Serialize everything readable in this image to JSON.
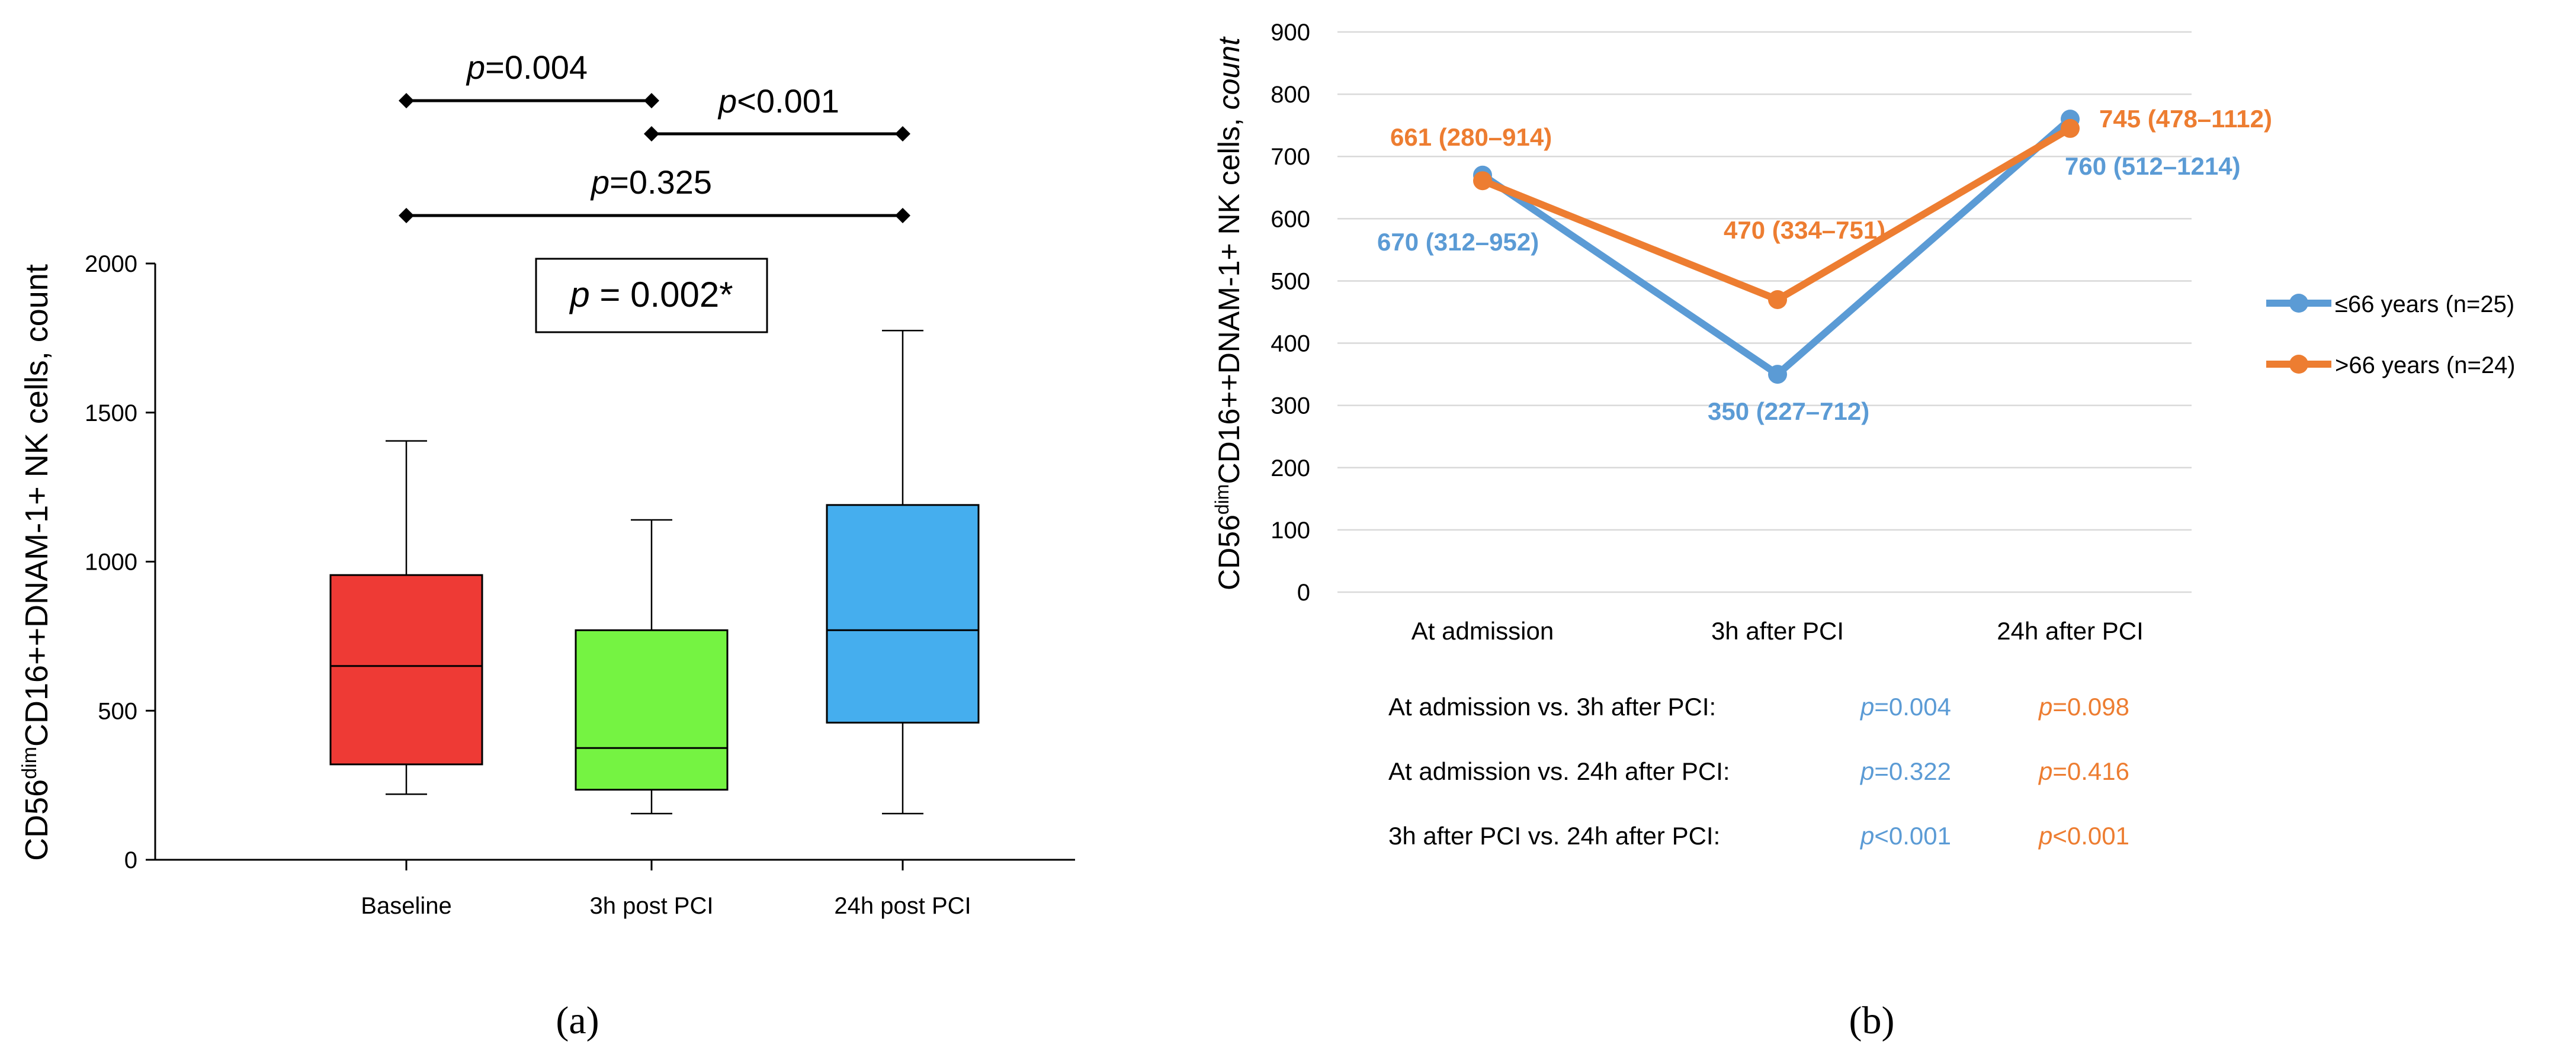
{
  "chart_data": [
    {
      "type": "box",
      "panel_label": "(a)",
      "ylabel_parts": [
        "CD56",
        "dim",
        "CD16++DNAM-1+ NK cells, count"
      ],
      "categories": [
        "Baseline",
        "3h post PCI",
        "24h post PCI"
      ],
      "colors": [
        "#EE3A35",
        "#75F342",
        "#45AEEE"
      ],
      "boxes": [
        {
          "min": 220,
          "q1": 320,
          "median": 650,
          "q3": 955,
          "max": 1405
        },
        {
          "min": 155,
          "q1": 235,
          "median": 375,
          "q3": 770,
          "max": 1140
        },
        {
          "min": 155,
          "q1": 460,
          "median": 770,
          "q3": 1190,
          "max": 1775
        }
      ],
      "ylim": [
        0,
        2000
      ],
      "yticks": [
        "0",
        "500",
        "1000",
        "1500",
        "2000"
      ],
      "overall_test": {
        "p": "p",
        "rest": " = 0.002*"
      },
      "comparisons": [
        {
          "from": 0,
          "to": 1,
          "p": "p",
          "rest": "=0.004"
        },
        {
          "from": 1,
          "to": 2,
          "p": "p",
          "rest": "<0.001"
        },
        {
          "from": 0,
          "to": 2,
          "p": "p",
          "rest": "=0.325"
        }
      ]
    },
    {
      "type": "line",
      "panel_label": "(b)",
      "ylabel_parts": [
        "CD56",
        "dim",
        "CD16++DNAM-1+ NK cells, ",
        "count"
      ],
      "categories": [
        "At admission",
        "3h after PCI",
        "24h after PCI"
      ],
      "ylim": [
        0,
        900
      ],
      "yticks": [
        "0",
        "100",
        "200",
        "300",
        "400",
        "500",
        "600",
        "700",
        "800",
        "900"
      ],
      "grid": true,
      "legend_position": "right",
      "series": [
        {
          "name": "≤66 years (n=25)",
          "color": "#5B9BD5",
          "values": [
            670,
            350,
            760
          ],
          "labels": [
            "670 (312–952)",
            "350 (227–712)",
            "760 (512–1214)"
          ]
        },
        {
          "name": ">66 years (n=24)",
          "color": "#ED7D31",
          "values": [
            661,
            470,
            745
          ],
          "labels": [
            "661 (280–914)",
            "470 (334–751)",
            "745 (478–1112)"
          ]
        }
      ],
      "comparisons": [
        {
          "label": "At admission vs. 3h after PCI:",
          "p1": "=0.004",
          "p2": "=0.098"
        },
        {
          "label": "At admission vs. 24h after PCI:",
          "p1": "=0.322",
          "p2": "=0.416"
        },
        {
          "label": "3h after PCI vs. 24h after PCI:",
          "p1": "<0.001",
          "p2": "<0.001"
        }
      ]
    }
  ]
}
